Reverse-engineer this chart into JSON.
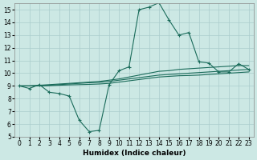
{
  "xlabel": "Humidex (Indice chaleur)",
  "bg_color": "#cce8e4",
  "grid_color": "#aacccc",
  "line_color": "#1a6b5a",
  "xlim": [
    -0.5,
    23.5
  ],
  "ylim": [
    5,
    15.5
  ],
  "yticks": [
    5,
    6,
    7,
    8,
    9,
    10,
    11,
    12,
    13,
    14,
    15
  ],
  "xticks": [
    0,
    1,
    2,
    3,
    4,
    5,
    6,
    7,
    8,
    9,
    10,
    11,
    12,
    13,
    14,
    15,
    16,
    17,
    18,
    19,
    20,
    21,
    22,
    23
  ],
  "curve1_x": [
    0,
    1,
    2,
    3,
    4,
    5,
    6,
    7,
    8,
    9,
    10,
    11,
    12,
    13,
    14,
    15,
    16,
    17,
    18,
    19,
    20,
    21,
    22,
    23
  ],
  "curve1_y": [
    9.0,
    8.8,
    9.1,
    8.5,
    8.4,
    8.2,
    6.3,
    5.4,
    5.5,
    9.1,
    10.2,
    10.5,
    15.0,
    15.2,
    15.55,
    14.2,
    13.0,
    13.2,
    10.9,
    10.8,
    10.1,
    10.1,
    10.75,
    10.3
  ],
  "curve2_x": [
    0,
    1,
    2,
    3,
    4,
    5,
    6,
    7,
    8,
    9,
    10,
    11,
    12,
    13,
    14,
    15,
    16,
    17,
    18,
    19,
    20,
    21,
    22,
    23
  ],
  "curve2_y": [
    9.0,
    9.0,
    9.05,
    9.1,
    9.15,
    9.2,
    9.25,
    9.3,
    9.35,
    9.45,
    9.55,
    9.7,
    9.85,
    10.0,
    10.15,
    10.2,
    10.3,
    10.35,
    10.4,
    10.45,
    10.5,
    10.55,
    10.6,
    10.6
  ],
  "curve3_x": [
    0,
    1,
    2,
    3,
    4,
    5,
    6,
    7,
    8,
    9,
    10,
    11,
    12,
    13,
    14,
    15,
    16,
    17,
    18,
    19,
    20,
    21,
    22,
    23
  ],
  "curve3_y": [
    9.0,
    9.0,
    9.02,
    9.05,
    9.1,
    9.15,
    9.2,
    9.25,
    9.28,
    9.35,
    9.45,
    9.55,
    9.65,
    9.75,
    9.85,
    9.9,
    9.95,
    10.0,
    10.05,
    10.1,
    10.15,
    10.2,
    10.25,
    10.3
  ],
  "curve4_x": [
    0,
    1,
    2,
    3,
    4,
    5,
    6,
    7,
    8,
    9,
    10,
    11,
    12,
    13,
    14,
    15,
    16,
    17,
    18,
    19,
    20,
    21,
    22,
    23
  ],
  "curve4_y": [
    9.0,
    9.0,
    9.0,
    9.02,
    9.05,
    9.08,
    9.1,
    9.12,
    9.15,
    9.2,
    9.3,
    9.4,
    9.5,
    9.6,
    9.7,
    9.75,
    9.8,
    9.82,
    9.85,
    9.9,
    9.95,
    10.0,
    10.05,
    10.1
  ]
}
